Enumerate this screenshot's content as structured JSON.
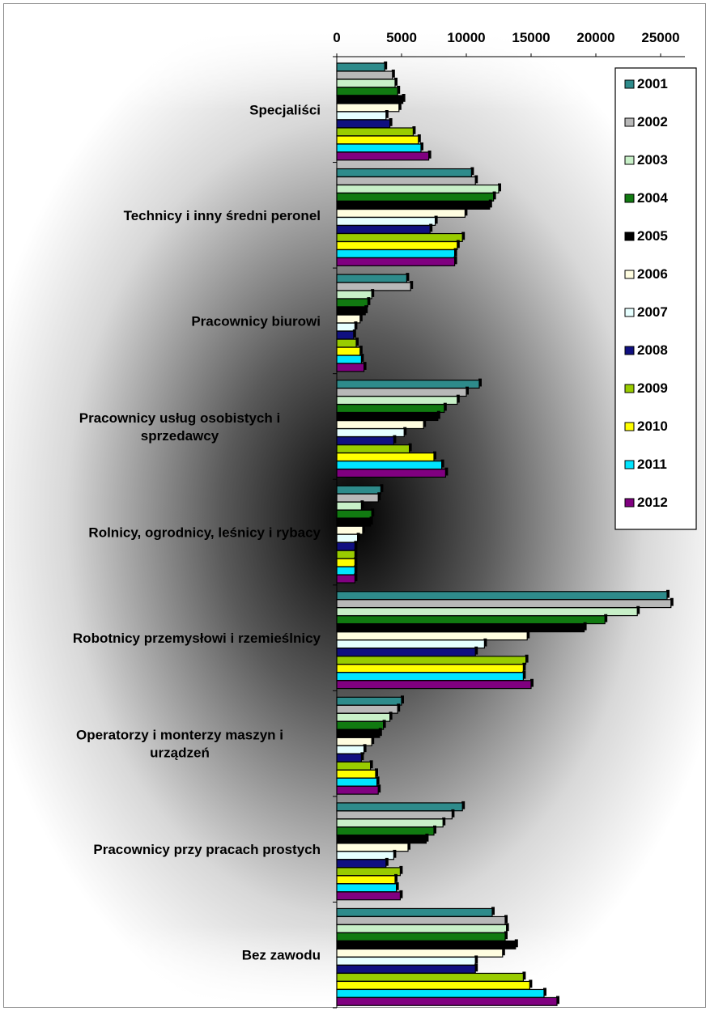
{
  "chart_data": {
    "type": "bar",
    "orientation": "horizontal",
    "title": "",
    "xlabel": "",
    "ylabel": "",
    "xlim": [
      0,
      25000
    ],
    "x_ticks": [
      "0",
      "5000",
      "10000",
      "15000",
      "20000",
      "25000"
    ],
    "x_axis_position": "top",
    "grid": false,
    "legend_position": "top-right",
    "categories": [
      "Specjaliści",
      "Technicy i inny średni peronel",
      "Pracownicy biurowi",
      "Pracownicy usług osobistych i sprzedawcy",
      "Rolnicy, ogrodnicy, leśnicy i rybacy",
      "Robotnicy przemysłowi i rzemieślnicy",
      "Operatorzy i monterzy maszyn i urządzeń",
      "Pracownicy przy pracach prostych",
      "Bez zawodu"
    ],
    "series": [
      {
        "name": "2001",
        "color": "#2e8b8b",
        "values": [
          3700,
          10400,
          5400,
          11000,
          3400,
          25500,
          5000,
          9700,
          12000
        ]
      },
      {
        "name": "2002",
        "color": "#b8b8b8",
        "values": [
          4300,
          10700,
          5700,
          10000,
          3200,
          25800,
          4700,
          8900,
          13000
        ]
      },
      {
        "name": "2003",
        "color": "#c8f0c8",
        "values": [
          4500,
          12500,
          2700,
          9300,
          1900,
          23200,
          4100,
          8200,
          13100
        ]
      },
      {
        "name": "2004",
        "color": "#117a11",
        "values": [
          4700,
          12100,
          2400,
          8300,
          2700,
          20700,
          3600,
          7500,
          13000
        ]
      },
      {
        "name": "2005",
        "color": "#000000",
        "values": [
          5100,
          11800,
          2200,
          7800,
          2600,
          19100,
          3300,
          6900,
          13800
        ]
      },
      {
        "name": "2006",
        "color": "#fffde0",
        "values": [
          4800,
          9900,
          1800,
          6700,
          2000,
          14700,
          2700,
          5500,
          12800
        ]
      },
      {
        "name": "2007",
        "color": "#e6ffff",
        "values": [
          3800,
          7600,
          1400,
          5200,
          1600,
          11400,
          2100,
          4400,
          10700
        ]
      },
      {
        "name": "2008",
        "color": "#101080",
        "values": [
          4100,
          7200,
          1300,
          4400,
          1400,
          10700,
          1900,
          3800,
          10700
        ]
      },
      {
        "name": "2009",
        "color": "#99cc00",
        "values": [
          5900,
          9700,
          1500,
          5600,
          1400,
          14600,
          2600,
          4900,
          14400
        ]
      },
      {
        "name": "2010",
        "color": "#ffff00",
        "values": [
          6300,
          9300,
          1800,
          7500,
          1400,
          14400,
          3000,
          4500,
          14900
        ]
      },
      {
        "name": "2011",
        "color": "#00e5ff",
        "values": [
          6500,
          9100,
          1900,
          8100,
          1400,
          14400,
          3100,
          4600,
          16000
        ]
      },
      {
        "name": "2012",
        "color": "#800080",
        "values": [
          7100,
          9100,
          2100,
          8400,
          1400,
          15000,
          3200,
          4900,
          17000
        ]
      }
    ]
  }
}
